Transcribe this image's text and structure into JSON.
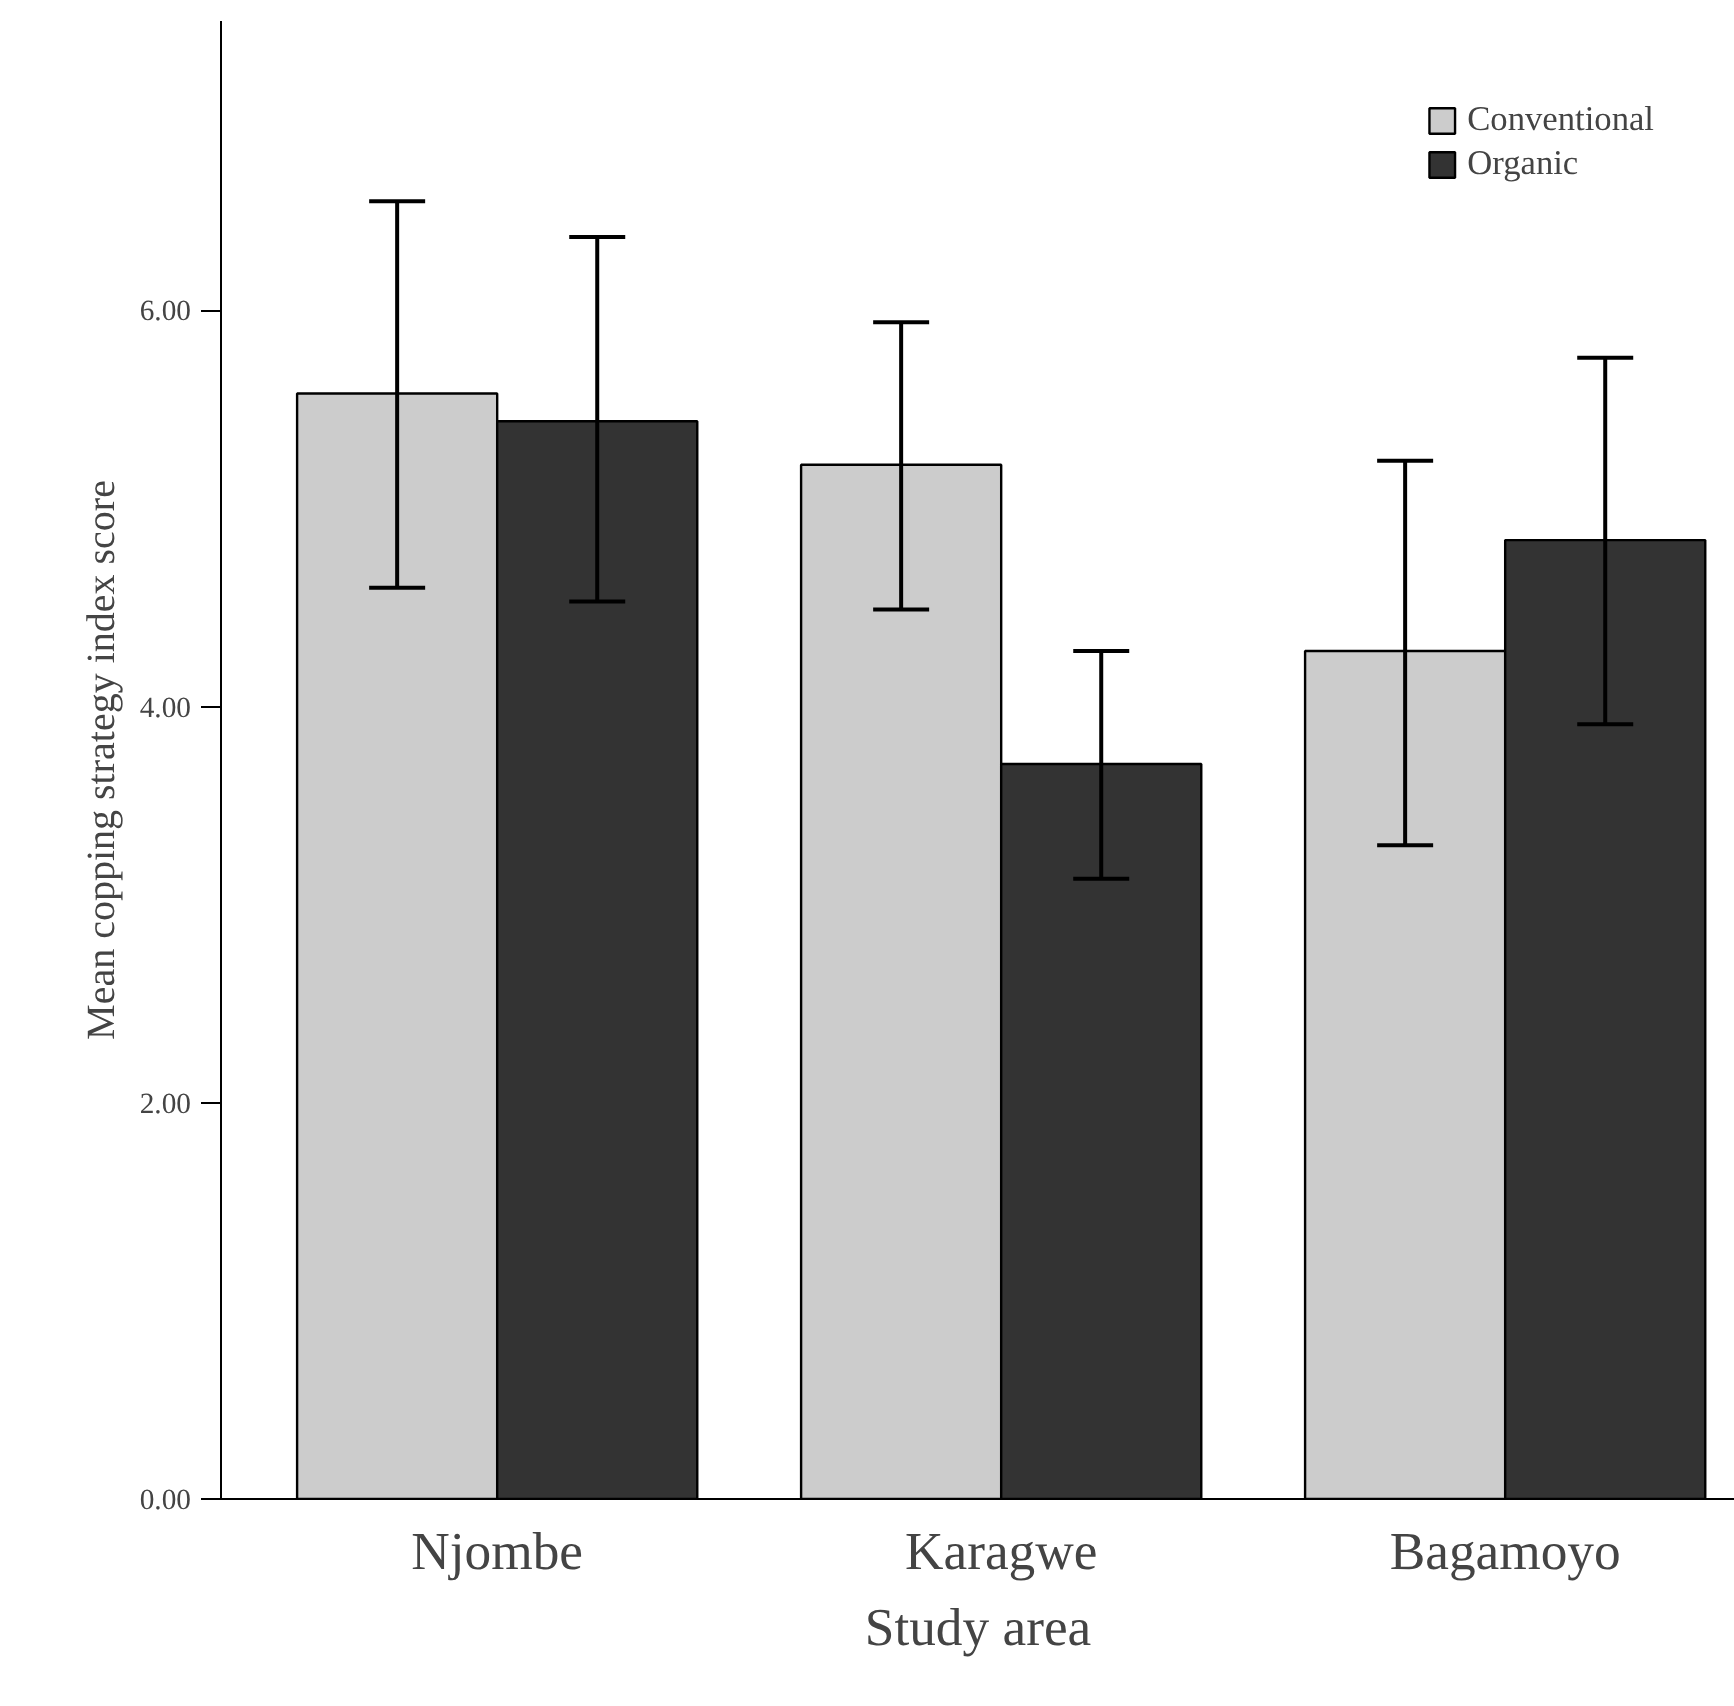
{
  "chart_data": {
    "type": "bar",
    "xlabel": "Study area",
    "ylabel": "Mean copping strategy index score",
    "categories": [
      "Njombe",
      "Karagwe",
      "Bagamoyo"
    ],
    "series": [
      {
        "name": "Conventional",
        "color": "#cccccc",
        "values": [
          5.58,
          5.22,
          4.28
        ],
        "errors": [
          [
            4.6,
            6.55
          ],
          [
            4.49,
            5.94
          ],
          [
            3.3,
            5.24
          ]
        ]
      },
      {
        "name": "Organic",
        "color": "#333333",
        "values": [
          5.44,
          3.71,
          4.84
        ],
        "errors": [
          [
            4.53,
            6.37
          ],
          [
            3.13,
            4.28
          ],
          [
            3.91,
            5.76
          ]
        ]
      }
    ],
    "ylim": [
      0,
      7.46
    ],
    "yticks": [
      {
        "value": 0,
        "label": "0.00"
      },
      {
        "value": 2,
        "label": "2.00"
      },
      {
        "value": 4,
        "label": "4.00"
      },
      {
        "value": 6,
        "label": "6.00"
      }
    ],
    "grid": false,
    "legend": "top right"
  }
}
